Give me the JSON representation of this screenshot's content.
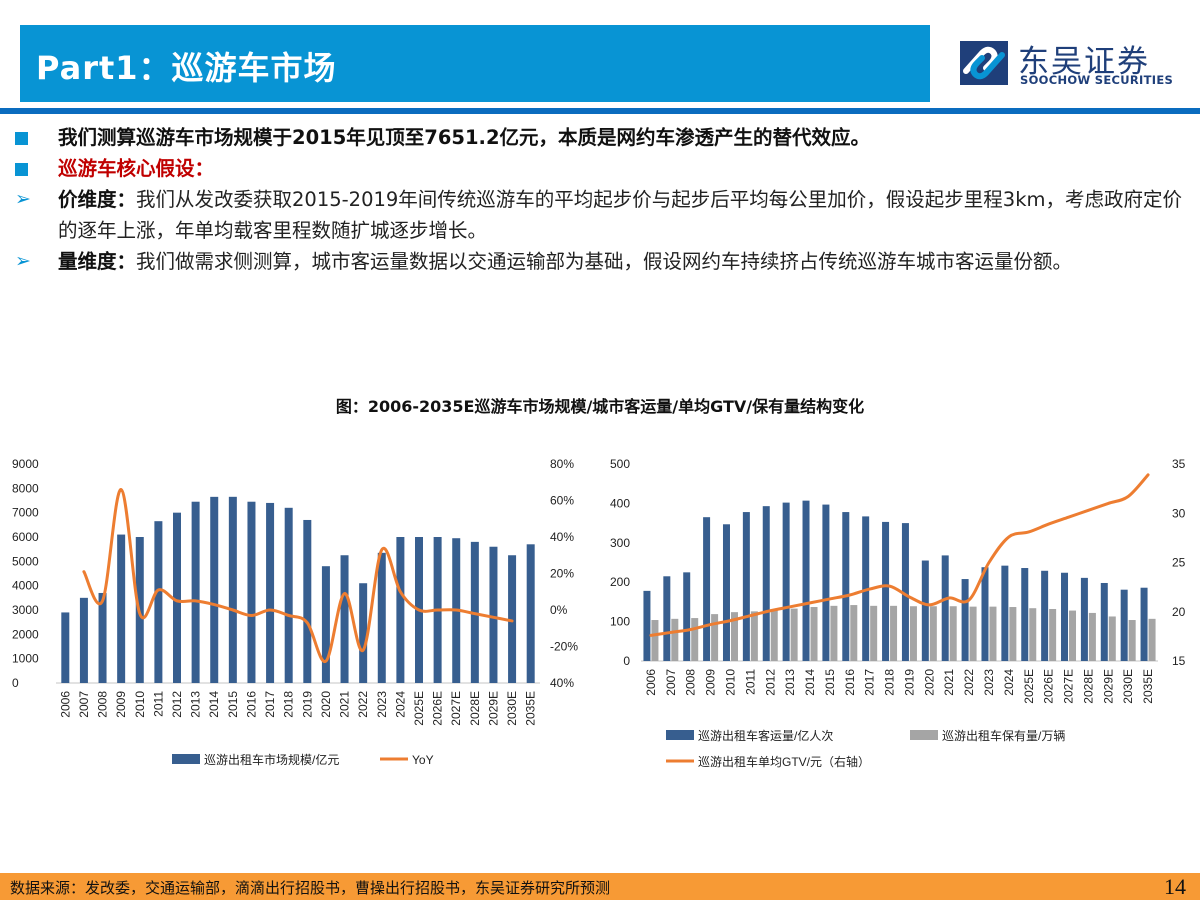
{
  "header": {
    "title": "Part1：巡游车市场",
    "logo_cn": "东吴证券",
    "logo_en": "SOOCHOW SECURITIES"
  },
  "bullets": [
    {
      "type": "square",
      "bold": "我们测算巡游车市场规模于2015年见顶至7651.2亿元，本质是网约车渗透产生的替代效应。",
      "text": ""
    },
    {
      "type": "square-red",
      "bold": "巡游车核心假设：",
      "text": ""
    },
    {
      "type": "arrow",
      "bold": "价维度：",
      "text": "我们从发改委获取2015-2019年间传统巡游车的平均起步价与起步后平均每公里加价，假设起步里程3km，考虑政府定价的逐年上涨，年单均载客里程数随扩城逐步增长。"
    },
    {
      "type": "arrow",
      "bold": "量维度：",
      "text": "我们做需求侧测算，城市客运量数据以交通运输部为基础，假设网约车持续挤占传统巡游车城市客运量份额。"
    }
  ],
  "figure_title": "图：2006-2035E巡游车市场规模/城市客运量/单均GTV/保有量结构变化",
  "footer": {
    "source": "数据来源：发改委，交通运输部，滴滴出行招股书，曹操出行招股书，东吴证券研究所预测",
    "page": "14"
  },
  "colors": {
    "title_bar": "#0894d4",
    "divider": "#0a6cbf",
    "bar_blue": "#375e8f",
    "bar_gray": "#a5a5a5",
    "line_orange": "#ed7d31",
    "footer": "#f79a35",
    "red_text": "#c00000"
  },
  "chart_data": [
    {
      "type": "bar",
      "title": "",
      "categories": [
        "2006",
        "2007",
        "2008",
        "2009",
        "2010",
        "2011",
        "2012",
        "2013",
        "2014",
        "2015",
        "2016",
        "2017",
        "2018",
        "2019",
        "2020",
        "2021",
        "2022",
        "2023",
        "2024",
        "2025E",
        "2026E",
        "2027E",
        "2028E",
        "2029E",
        "2030E",
        "2035E"
      ],
      "series": [
        {
          "name": "巡游出租车市场规模/亿元",
          "type": "bar",
          "axis": "left",
          "values": [
            2900,
            3500,
            3700,
            6100,
            6000,
            6650,
            7000,
            7450,
            7650,
            7651.2,
            7450,
            7400,
            7200,
            6700,
            4800,
            5250,
            4100,
            5350,
            6000,
            6000,
            6000,
            5950,
            5800,
            5600,
            5250,
            5700
          ]
        },
        {
          "name": "YoY",
          "type": "line",
          "axis": "right",
          "values": [
            null,
            21,
            5,
            66,
            -2,
            11,
            5,
            5,
            3,
            0,
            -3,
            0,
            -3,
            -7,
            -28,
            9,
            -22,
            33,
            10,
            0,
            0,
            0,
            -2,
            -4,
            -6,
            null
          ]
        }
      ],
      "yleft": {
        "ticks": [
          "0",
          "1000",
          "2000",
          "3000",
          "4000",
          "5000",
          "6000",
          "7000",
          "8000",
          "9000"
        ],
        "range": [
          0,
          9000
        ]
      },
      "yright": {
        "ticks": [
          "80%",
          "60%",
          "40%",
          "20%",
          "0%",
          "-20%",
          "40%"
        ],
        "range": [
          -40,
          80
        ]
      },
      "legend": [
        "巡游出租车市场规模/亿元",
        "YoY"
      ],
      "legend_position": "bottom",
      "grid": false
    },
    {
      "type": "bar",
      "title": "",
      "categories": [
        "2006",
        "2007",
        "2008",
        "2009",
        "2010",
        "2011",
        "2012",
        "2013",
        "2014",
        "2015",
        "2016",
        "2017",
        "2018",
        "2019",
        "2020",
        "2021",
        "2022",
        "2023",
        "2024",
        "2025E",
        "2026E",
        "2027E",
        "2028E",
        "2029E",
        "2030E",
        "2035E"
      ],
      "series": [
        {
          "name": "巡游出租车客运量/亿人次",
          "type": "bar",
          "axis": "left",
          "values": [
            178,
            215,
            225,
            365,
            347,
            378,
            393,
            402,
            407,
            397,
            378,
            367,
            353,
            350,
            255,
            268,
            208,
            238,
            242,
            236,
            229,
            224,
            211,
            198,
            181,
            186
          ]
        },
        {
          "name": "巡游出租车保有量/万辆",
          "type": "bar",
          "axis": "left",
          "values": [
            104,
            107,
            109,
            119,
            124,
            126,
            131,
            133,
            137,
            140,
            142,
            140,
            140,
            139,
            139,
            139,
            138,
            138,
            137,
            134,
            132,
            128,
            122,
            113,
            104,
            107
          ]
        },
        {
          "name": "巡游出租车单均GTV/元（右轴）",
          "type": "line",
          "axis": "right",
          "values": [
            17.6,
            17.9,
            18.2,
            18.7,
            19.1,
            19.6,
            20.1,
            20.5,
            20.9,
            21.3,
            21.7,
            22.3,
            22.6,
            21.5,
            20.7,
            21.4,
            21.2,
            25.0,
            27.6,
            28.1,
            28.9,
            29.6,
            30.3,
            31.0,
            31.7,
            33.9
          ]
        }
      ],
      "yleft": {
        "ticks": [
          "0",
          "100",
          "200",
          "300",
          "400",
          "500"
        ],
        "range": [
          0,
          500
        ]
      },
      "yright": {
        "ticks": [
          "15",
          "20",
          "25",
          "30",
          "35"
        ],
        "range": [
          15,
          35
        ]
      },
      "legend": [
        "巡游出租车客运量/亿人次",
        "巡游出租车保有量/万辆",
        "巡游出租车单均GTV/元（右轴）"
      ],
      "legend_position": "bottom",
      "grid": false
    }
  ]
}
